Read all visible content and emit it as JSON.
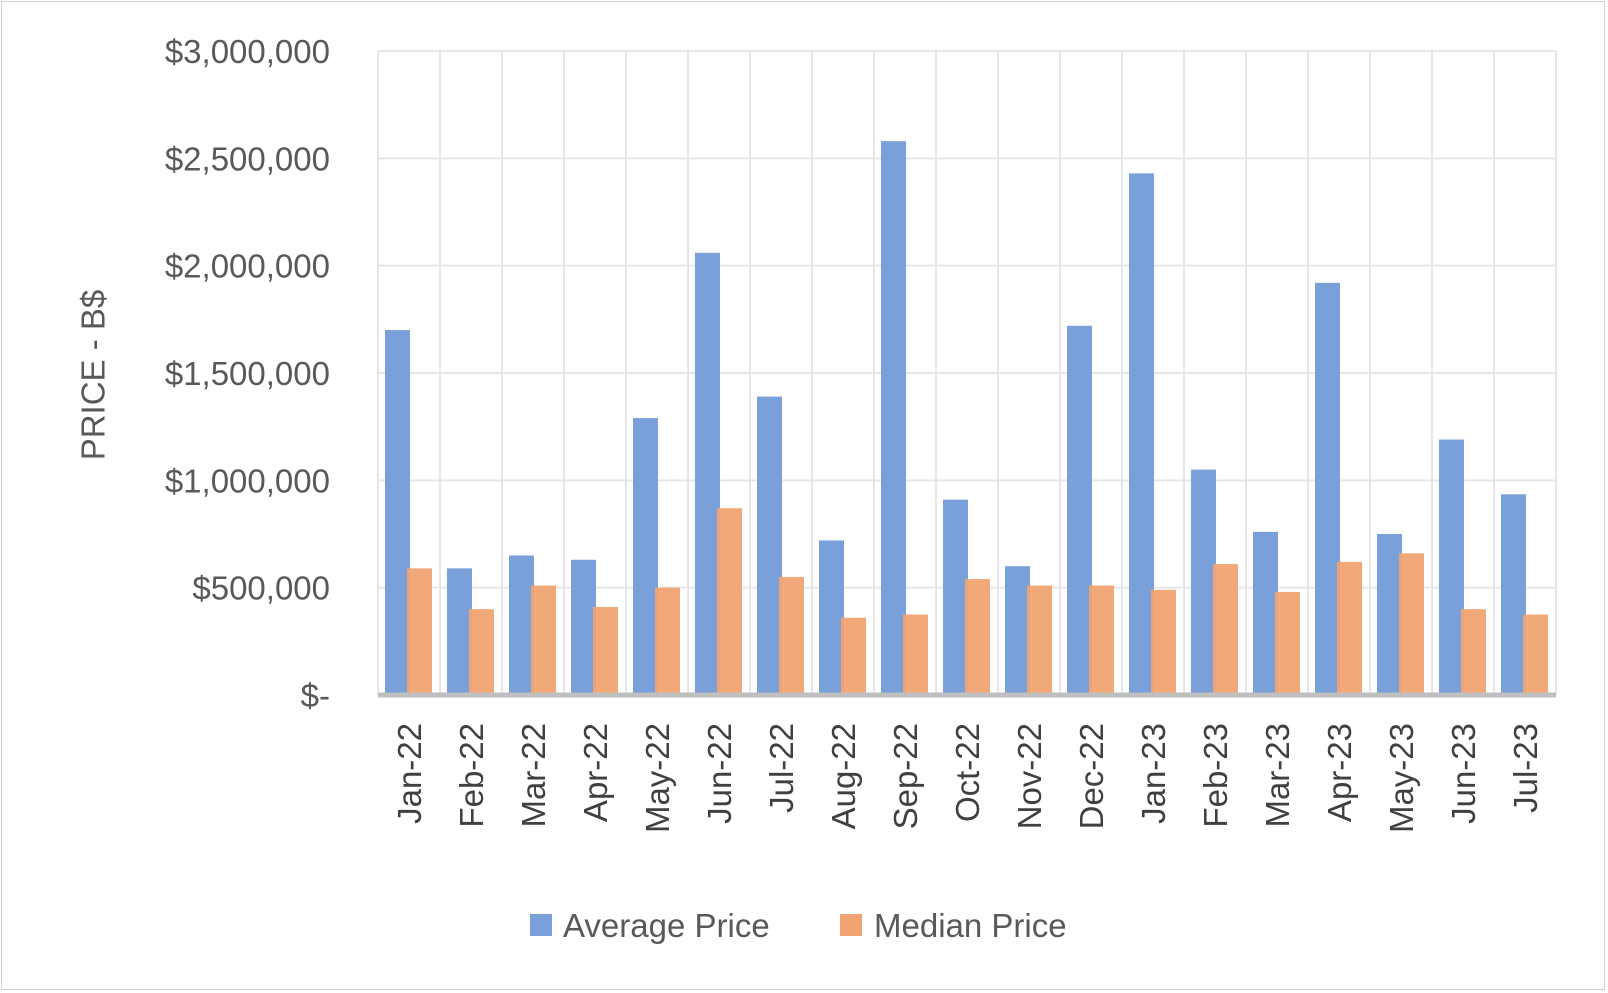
{
  "chart_data": {
    "type": "bar",
    "title": "",
    "xlabel": "",
    "ylabel": "PRICE - B$",
    "ylim": [
      0,
      3000000
    ],
    "yticks": [
      0,
      500000,
      1000000,
      1500000,
      2000000,
      2500000,
      3000000
    ],
    "ytick_labels": [
      "$-",
      "$500,000",
      "$1,000,000",
      "$1,500,000",
      "$2,000,000",
      "$2,500,000",
      "$3,000,000"
    ],
    "grid": true,
    "legend_position": "bottom",
    "categories": [
      "Jan-22",
      "Feb-22",
      "Mar-22",
      "Apr-22",
      "May-22",
      "Jun-22",
      "Jul-22",
      "Aug-22",
      "Sep-22",
      "Oct-22",
      "Nov-22",
      "Dec-22",
      "Jan-23",
      "Feb-23",
      "Mar-23",
      "Apr-23",
      "May-23",
      "Jun-23",
      "Jul-23"
    ],
    "series": [
      {
        "name": "Average Price",
        "color": "#7aa0d9",
        "values": [
          1700000,
          590000,
          650000,
          630000,
          1290000,
          2060000,
          1390000,
          720000,
          2580000,
          910000,
          600000,
          1720000,
          2430000,
          1050000,
          760000,
          1920000,
          750000,
          1190000,
          935000
        ]
      },
      {
        "name": "Median Price",
        "color": "#f1a472",
        "values": [
          590000,
          400000,
          510000,
          410000,
          500000,
          870000,
          550000,
          360000,
          375000,
          540000,
          510000,
          510000,
          490000,
          610000,
          480000,
          620000,
          660000,
          400000,
          375000
        ]
      }
    ]
  }
}
